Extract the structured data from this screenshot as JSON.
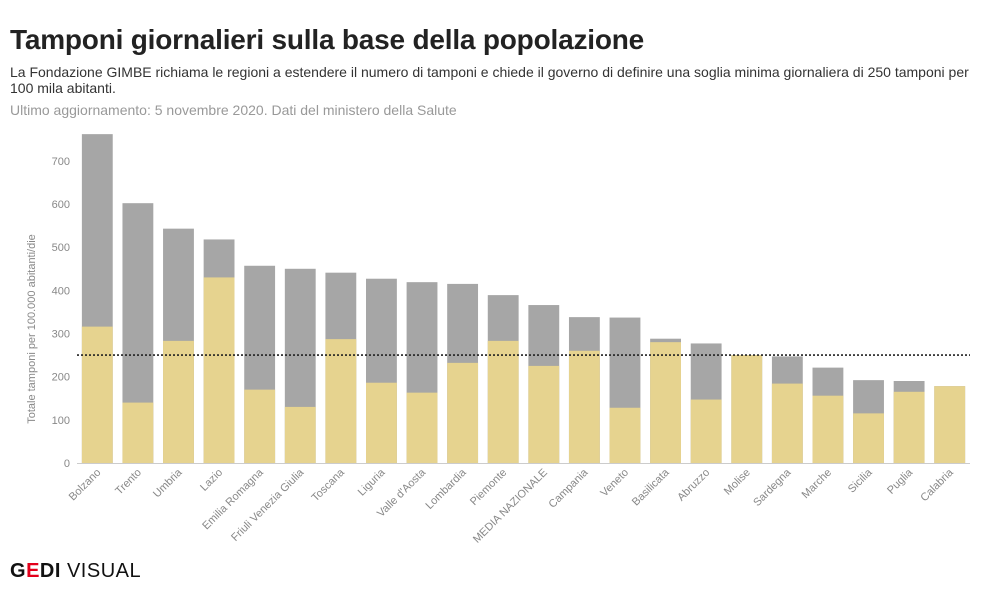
{
  "header": {
    "title": "Tamponi giornalieri sulla base della popolazione",
    "subtitle": "La Fondazione GIMBE richiama le regioni a estendere il numero di tamponi e chiede il governo di definire una soglia minima giornaliera di 250 tamponi per 100 mila abitanti.",
    "note": "Ultimo aggiornamento: 5 novembre 2020. Dati del ministero della Salute"
  },
  "logo": {
    "g": "G",
    "e": "E",
    "di": "DI",
    "visual": " VISUAL"
  },
  "colors": {
    "total": "#a6a6a6",
    "yellow": "#e6d38f",
    "axis": "#999999",
    "text": "#888888",
    "threshold": "#222222"
  },
  "chart_data": {
    "type": "bar",
    "ylabel": "Totale tamponi per 100.000 abitanti/die",
    "ylim": [
      0,
      760
    ],
    "yticks": [
      0,
      100,
      200,
      300,
      400,
      500,
      600,
      700
    ],
    "threshold": 250,
    "categories": [
      "Bolzano",
      "Trento",
      "Umbria",
      "Lazio",
      "Emilia Romagna",
      "Friuli Venezia Giulia",
      "Toscana",
      "Liguria",
      "Valle d'Aosta",
      "Lombardia",
      "Piemonte",
      "MEDIA NAZIONALE",
      "Campania",
      "Veneto",
      "Basilicata",
      "Abruzzo",
      "Molise",
      "Sardegna",
      "Marche",
      "Sicilia",
      "Puglia",
      "Calabria"
    ],
    "series": [
      {
        "values": [
          762,
          602,
          543,
          518,
          457,
          450,
          441,
          427,
          419,
          415,
          389,
          366,
          338,
          337,
          288,
          277,
          250,
          247,
          221,
          192,
          190,
          178
        ]
      },
      {
        "values": [
          316,
          140,
          283,
          430,
          170,
          130,
          287,
          186,
          163,
          232,
          283,
          225,
          260,
          128,
          280,
          147,
          250,
          184,
          156,
          115,
          165,
          178
        ]
      }
    ],
    "grid": false
  }
}
